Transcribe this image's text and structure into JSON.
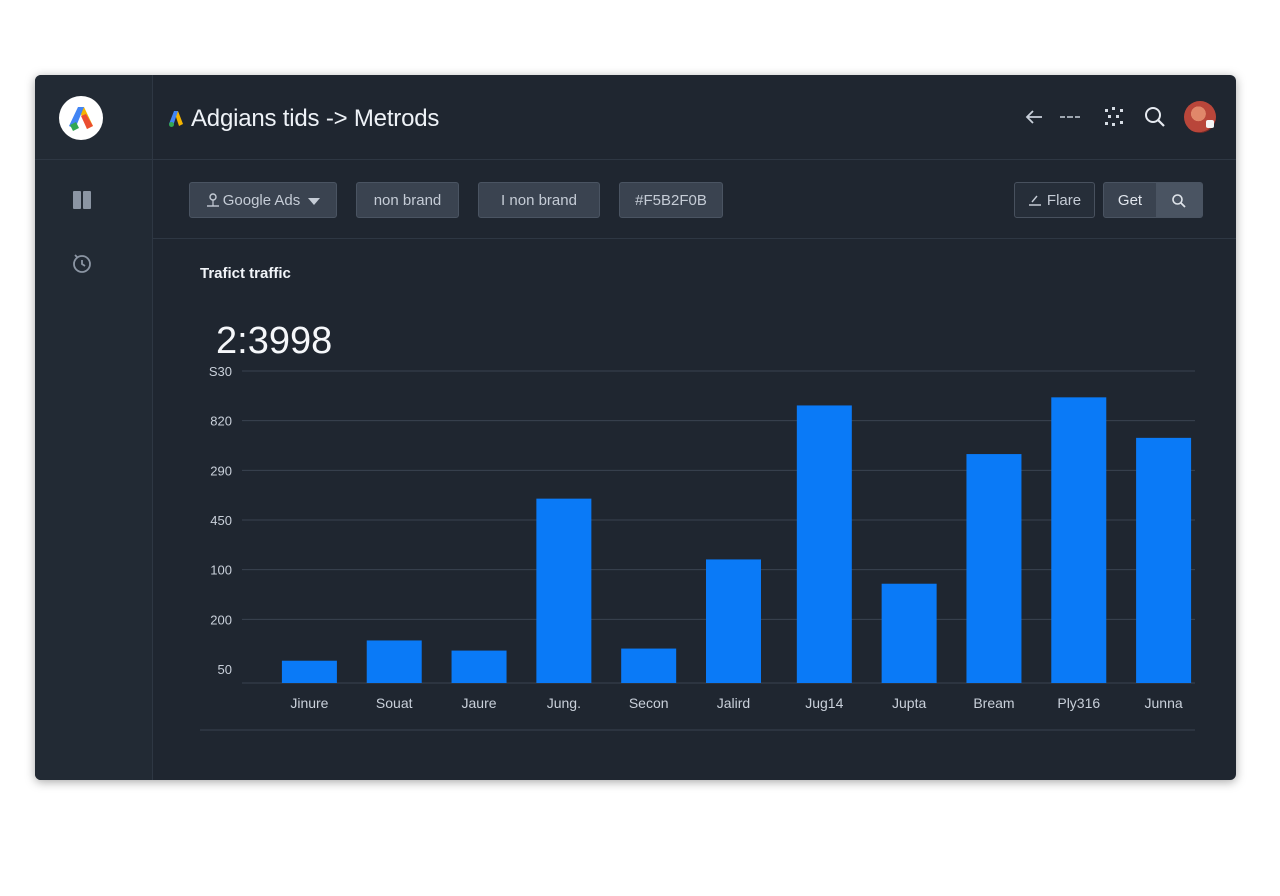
{
  "header": {
    "title": "Adgians tids -> Metrods"
  },
  "toolbar_icons": [
    "back-arrow-icon",
    "more-icon",
    "grid-dots-icon",
    "search-icon"
  ],
  "filters": {
    "chips": [
      {
        "label": "Google Ads",
        "icon": "person-icon",
        "dropdown": true
      },
      {
        "label": "non brand"
      },
      {
        "label": "I non brand"
      },
      {
        "label": "#F5B2F0B"
      }
    ],
    "flare_label": "Flare",
    "get_label": "Get"
  },
  "section": {
    "title": "Trafict traffic",
    "big_number": "2:3998"
  },
  "colors": {
    "bar": "#0a7af7",
    "background": "#1f2630",
    "grid": "#3a4350"
  },
  "chart_data": {
    "type": "bar",
    "title": "",
    "xlabel": "",
    "ylabel": "",
    "yticks": [
      "S30",
      "820",
      "290",
      "450",
      "100",
      "200",
      "50"
    ],
    "categories": [
      "Jinure",
      "Souat",
      "Jaure",
      "Jung.",
      "Secon",
      "Jalird",
      "Jug14",
      "Jupta",
      "Bream",
      "Ply316",
      "Junna"
    ],
    "values": [
      11,
      21,
      16,
      91,
      17,
      61,
      137,
      49,
      113,
      141,
      121
    ],
    "ylim": [
      0,
      154
    ],
    "grid": true
  }
}
